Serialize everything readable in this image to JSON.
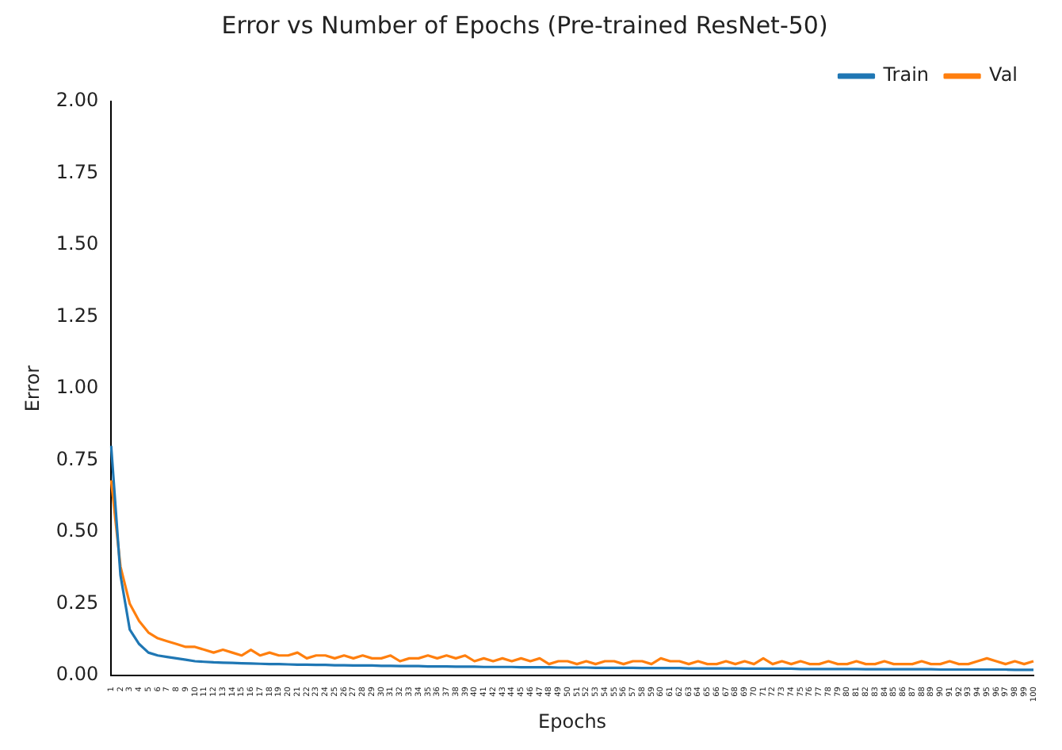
{
  "chart_data": {
    "type": "line",
    "title": "Error vs Number of Epochs (Pre-trained ResNet-50)",
    "xlabel": "Epochs",
    "ylabel": "Error",
    "categories": [
      "1",
      "2",
      "3",
      "4",
      "5",
      "6",
      "7",
      "8",
      "9",
      "10",
      "11",
      "12",
      "13",
      "14",
      "15",
      "16",
      "17",
      "18",
      "19",
      "20",
      "21",
      "22",
      "23",
      "24",
      "25",
      "26",
      "27",
      "28",
      "29",
      "30",
      "31",
      "32",
      "33",
      "34",
      "35",
      "36",
      "37",
      "38",
      "39",
      "40",
      "41",
      "42",
      "43",
      "44",
      "45",
      "46",
      "47",
      "48",
      "49",
      "50",
      "51",
      "52",
      "53",
      "54",
      "55",
      "56",
      "57",
      "58",
      "59",
      "60",
      "61",
      "62",
      "63",
      "64",
      "65",
      "66",
      "67",
      "68",
      "69",
      "70",
      "71",
      "72",
      "73",
      "74",
      "75",
      "76",
      "77",
      "78",
      "79",
      "80",
      "81",
      "82",
      "83",
      "84",
      "85",
      "86",
      "87",
      "88",
      "89",
      "90",
      "91",
      "92",
      "93",
      "94",
      "95",
      "96",
      "97",
      "98",
      "99",
      "100"
    ],
    "series": [
      {
        "name": "Train",
        "color": "#1f77b4",
        "values": [
          0.8,
          0.35,
          0.16,
          0.11,
          0.08,
          0.07,
          0.065,
          0.06,
          0.055,
          0.05,
          0.048,
          0.046,
          0.045,
          0.044,
          0.043,
          0.042,
          0.041,
          0.04,
          0.04,
          0.039,
          0.038,
          0.038,
          0.037,
          0.037,
          0.036,
          0.036,
          0.035,
          0.035,
          0.035,
          0.034,
          0.034,
          0.033,
          0.033,
          0.033,
          0.032,
          0.032,
          0.032,
          0.031,
          0.031,
          0.031,
          0.03,
          0.03,
          0.03,
          0.03,
          0.029,
          0.029,
          0.029,
          0.029,
          0.028,
          0.028,
          0.028,
          0.028,
          0.027,
          0.027,
          0.027,
          0.027,
          0.027,
          0.026,
          0.026,
          0.026,
          0.026,
          0.026,
          0.025,
          0.025,
          0.025,
          0.025,
          0.025,
          0.025,
          0.024,
          0.024,
          0.024,
          0.024,
          0.024,
          0.024,
          0.023,
          0.023,
          0.023,
          0.023,
          0.023,
          0.023,
          0.023,
          0.022,
          0.022,
          0.022,
          0.022,
          0.022,
          0.022,
          0.022,
          0.022,
          0.021,
          0.021,
          0.021,
          0.021,
          0.021,
          0.021,
          0.021,
          0.021,
          0.02,
          0.02,
          0.02
        ]
      },
      {
        "name": "Val",
        "color": "#ff7f0e",
        "values": [
          0.68,
          0.38,
          0.25,
          0.19,
          0.15,
          0.13,
          0.12,
          0.11,
          0.1,
          0.1,
          0.09,
          0.08,
          0.09,
          0.08,
          0.07,
          0.09,
          0.07,
          0.08,
          0.07,
          0.07,
          0.08,
          0.06,
          0.07,
          0.07,
          0.06,
          0.07,
          0.06,
          0.07,
          0.06,
          0.06,
          0.07,
          0.05,
          0.06,
          0.06,
          0.07,
          0.06,
          0.07,
          0.06,
          0.07,
          0.05,
          0.06,
          0.05,
          0.06,
          0.05,
          0.06,
          0.05,
          0.06,
          0.04,
          0.05,
          0.05,
          0.04,
          0.05,
          0.04,
          0.05,
          0.05,
          0.04,
          0.05,
          0.05,
          0.04,
          0.06,
          0.05,
          0.05,
          0.04,
          0.05,
          0.04,
          0.04,
          0.05,
          0.04,
          0.05,
          0.04,
          0.06,
          0.04,
          0.05,
          0.04,
          0.05,
          0.04,
          0.04,
          0.05,
          0.04,
          0.04,
          0.05,
          0.04,
          0.04,
          0.05,
          0.04,
          0.04,
          0.04,
          0.05,
          0.04,
          0.04,
          0.05,
          0.04,
          0.04,
          0.05,
          0.06,
          0.05,
          0.04,
          0.05,
          0.04,
          0.05
        ]
      }
    ],
    "ylim": [
      0,
      2
    ],
    "yticks": [
      {
        "value": 0,
        "label": "0.00"
      },
      {
        "value": 0.25,
        "label": "0.25"
      },
      {
        "value": 0.5,
        "label": "0.50"
      },
      {
        "value": 0.75,
        "label": "0.75"
      },
      {
        "value": 1,
        "label": "1.00"
      },
      {
        "value": 1.25,
        "label": "1.25"
      },
      {
        "value": 1.5,
        "label": "1.50"
      },
      {
        "value": 1.75,
        "label": "1.75"
      },
      {
        "value": 2,
        "label": "2.00"
      }
    ],
    "grid": false,
    "legend": "top right",
    "marker": "none",
    "line_style": "solid"
  }
}
